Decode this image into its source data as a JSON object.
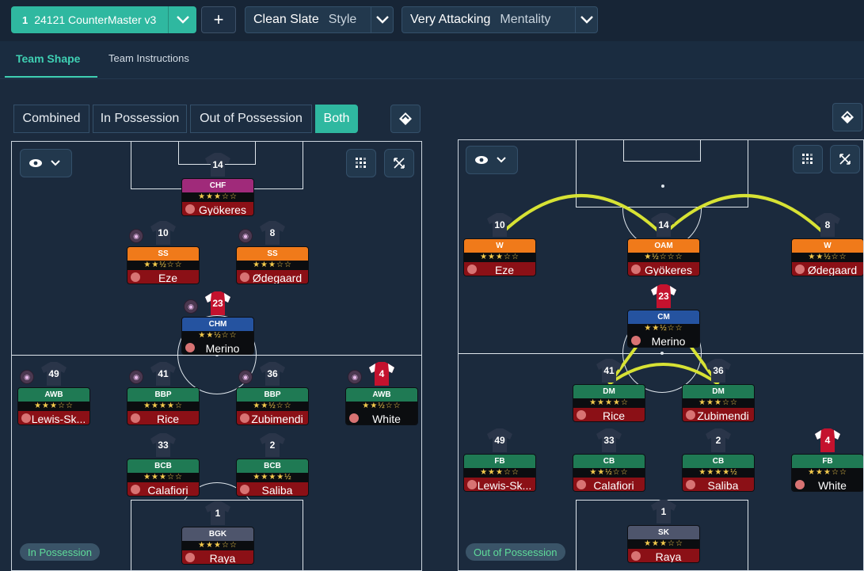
{
  "topbar": {
    "tactic_number": "1",
    "tactic_name": "24121 CounterMaster v3",
    "add_label": "+",
    "style_value": "Clean Slate",
    "style_label": "Style",
    "mentality_value": "Very Attacking",
    "mentality_label": "Mentality"
  },
  "tabs": [
    {
      "label": "Team Shape"
    },
    {
      "label": "Team Instructions"
    }
  ],
  "view_buttons": [
    {
      "label": "Combined"
    },
    {
      "label": "In Possession"
    },
    {
      "label": "Out of Possession"
    },
    {
      "label": "Both"
    }
  ],
  "colors": {
    "accent": "#2fb8a0",
    "role_orange": "#f07a1a",
    "role_green": "#1f7a54",
    "role_magenta": "#a02a7a",
    "role_blue": "#2553a0",
    "role_grey": "#4e556c",
    "name_red": "#8b1016",
    "name_black": "#0b0d10",
    "connection": "#d7e234"
  },
  "left_pitch": {
    "phase_label": "In Possession",
    "players": [
      {
        "num": "14",
        "role": "CHF",
        "stars": "★★★☆☆",
        "name": "Gyökeres",
        "role_color": "role_magenta",
        "name_style": "red",
        "badge": false,
        "shirt": "dark"
      },
      {
        "num": "10",
        "role": "SS",
        "stars": "★★½☆☆",
        "name": "Eze",
        "role_color": "role_orange",
        "name_style": "red",
        "badge": true,
        "shirt": "dark"
      },
      {
        "num": "8",
        "role": "SS",
        "stars": "★★★☆☆",
        "name": "Ødegaard",
        "role_color": "role_orange",
        "name_style": "red",
        "badge": true,
        "shirt": "dark"
      },
      {
        "num": "23",
        "role": "CHM",
        "stars": "★★½☆☆",
        "name": "Merino",
        "role_color": "role_blue",
        "name_style": "black",
        "badge": true,
        "shirt": "red"
      },
      {
        "num": "49",
        "role": "AWB",
        "stars": "★★★☆☆",
        "name": "Lewis-Sk...",
        "role_color": "role_green",
        "name_style": "red",
        "badge": true,
        "shirt": "dark"
      },
      {
        "num": "41",
        "role": "BBP",
        "stars": "★★★★☆",
        "name": "Rice",
        "role_color": "role_green",
        "name_style": "red",
        "badge": true,
        "shirt": "dark"
      },
      {
        "num": "36",
        "role": "BBP",
        "stars": "★★½☆☆",
        "name": "Zubimendi",
        "role_color": "role_green",
        "name_style": "red",
        "badge": true,
        "shirt": "dark"
      },
      {
        "num": "4",
        "role": "AWB",
        "stars": "★★½☆☆",
        "name": "White",
        "role_color": "role_green",
        "name_style": "black",
        "badge": true,
        "shirt": "red"
      },
      {
        "num": "33",
        "role": "BCB",
        "stars": "★★★☆☆",
        "name": "Calafiori",
        "role_color": "role_green",
        "name_style": "red",
        "badge": false,
        "shirt": "dark"
      },
      {
        "num": "2",
        "role": "BCB",
        "stars": "★★★★½",
        "name": "Saliba",
        "role_color": "role_green",
        "name_style": "red",
        "badge": false,
        "shirt": "dark"
      },
      {
        "num": "1",
        "role": "BGK",
        "stars": "★★★☆☆",
        "name": "Raya",
        "role_color": "role_grey",
        "name_style": "red",
        "badge": false,
        "shirt": "dark"
      }
    ]
  },
  "right_pitch": {
    "phase_label": "Out of Possession",
    "players": [
      {
        "num": "10",
        "role": "W",
        "stars": "★★★☆☆",
        "name": "Eze",
        "role_color": "role_orange",
        "name_style": "red",
        "badge": false,
        "shirt": "dark"
      },
      {
        "num": "14",
        "role": "OAM",
        "stars": "★½☆☆☆",
        "name": "Gyökeres",
        "role_color": "role_orange",
        "name_style": "red",
        "badge": false,
        "shirt": "dark"
      },
      {
        "num": "8",
        "role": "W",
        "stars": "★★½☆☆",
        "name": "Ødegaard",
        "role_color": "role_orange",
        "name_style": "red",
        "badge": false,
        "shirt": "dark"
      },
      {
        "num": "23",
        "role": "CM",
        "stars": "★★½☆☆",
        "name": "Merino",
        "role_color": "role_blue",
        "name_style": "black",
        "badge": false,
        "shirt": "red"
      },
      {
        "num": "41",
        "role": "DM",
        "stars": "★★★★☆",
        "name": "Rice",
        "role_color": "role_green",
        "name_style": "red",
        "badge": false,
        "shirt": "dark"
      },
      {
        "num": "36",
        "role": "DM",
        "stars": "★★★☆☆",
        "name": "Zubimendi",
        "role_color": "role_green",
        "name_style": "red",
        "badge": false,
        "shirt": "dark"
      },
      {
        "num": "49",
        "role": "FB",
        "stars": "★★★☆☆",
        "name": "Lewis-Sk...",
        "role_color": "role_green",
        "name_style": "red",
        "badge": false,
        "shirt": "dark"
      },
      {
        "num": "33",
        "role": "CB",
        "stars": "★★½☆☆",
        "name": "Calafiori",
        "role_color": "role_green",
        "name_style": "red",
        "badge": false,
        "shirt": "dark"
      },
      {
        "num": "2",
        "role": "CB",
        "stars": "★★★★½",
        "name": "Saliba",
        "role_color": "role_green",
        "name_style": "red",
        "badge": false,
        "shirt": "dark"
      },
      {
        "num": "4",
        "role": "FB",
        "stars": "★★★☆☆",
        "name": "White",
        "role_color": "role_green",
        "name_style": "black",
        "badge": false,
        "shirt": "red"
      },
      {
        "num": "1",
        "role": "SK",
        "stars": "★★★☆☆",
        "name": "Raya",
        "role_color": "role_grey",
        "name_style": "red",
        "badge": false,
        "shirt": "dark"
      }
    ]
  }
}
